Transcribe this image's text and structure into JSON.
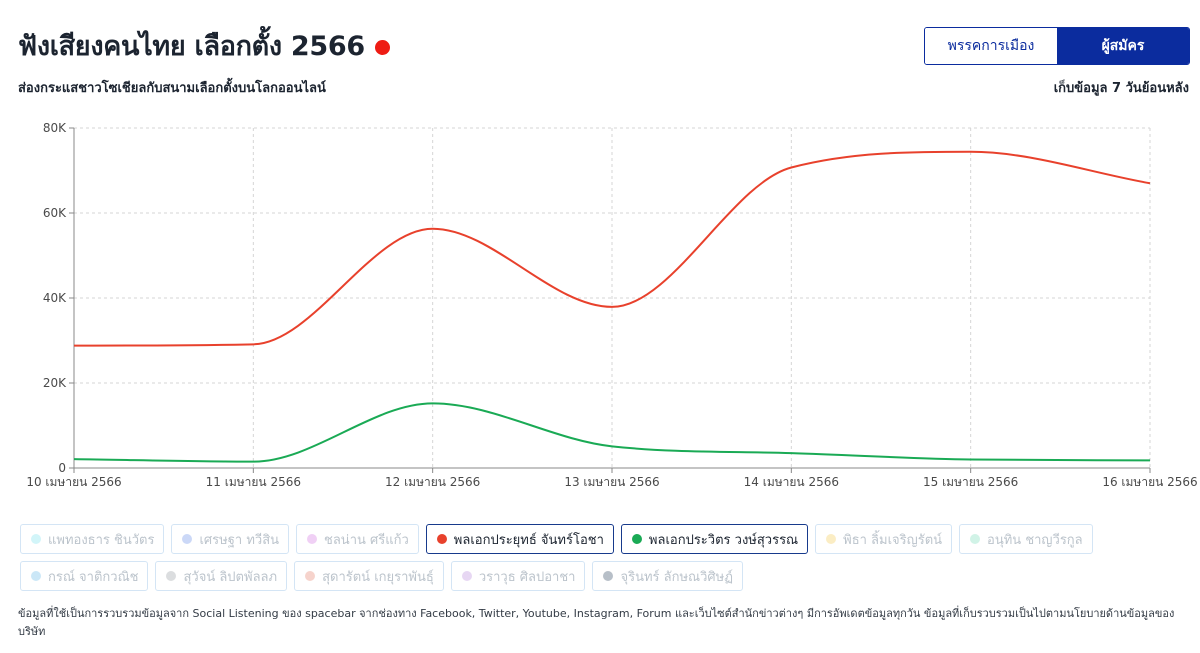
{
  "header": {
    "title": "ฟังเสียงคนไทย เลือกตั้ง 2566",
    "subtitle": "ส่องกระแสชาวโซเชียลกับสนามเลือกตั้งบนโลกออนไลน์",
    "period_note": "เก็บข้อมูล 7 วันย้อนหลัง",
    "live_color": "#ee1c14"
  },
  "toggle": {
    "party_label": "พรรคการเมือง",
    "candidate_label": "ผู้สมัคร",
    "selected": "candidate"
  },
  "chart_data": {
    "type": "line",
    "categories": [
      "10 เมษายน 2566",
      "11 เมษายน 2566",
      "12 เมษายน 2566",
      "13 เมษายน 2566",
      "14 เมษายน 2566",
      "15 เมษายน 2566",
      "16 เมษายน 2566"
    ],
    "ylim": [
      0,
      80000
    ],
    "yticks": [
      0,
      20000,
      40000,
      60000,
      80000
    ],
    "ytick_labels": [
      "0",
      "20K",
      "40K",
      "60K",
      "80K"
    ],
    "grid": true,
    "smooth": true,
    "series": [
      {
        "name": "พลเอกประยุทธ์ จันทร์โอชา",
        "color": "#e8412c",
        "values": [
          28800,
          29100,
          56300,
          37900,
          70700,
          74400,
          67000
        ]
      },
      {
        "name": "พลเอกประวิตร วงษ์สุวรรณ",
        "color": "#1aaa55",
        "values": [
          2100,
          1500,
          15200,
          5100,
          3500,
          2000,
          1800
        ]
      }
    ]
  },
  "legend": [
    {
      "label": "แพทองธาร ชินวัตร",
      "color": "#8ee6f0",
      "active": false
    },
    {
      "label": "เศรษฐา ทวีสิน",
      "color": "#7d9eea",
      "active": false
    },
    {
      "label": "ชลน่าน ศรีแก้ว",
      "color": "#d98ae6",
      "active": false
    },
    {
      "label": "พลเอกประยุทธ์ จันทร์โอชา",
      "color": "#e8412c",
      "active": true
    },
    {
      "label": "พลเอกประวิตร วงษ์สุวรรณ",
      "color": "#1aaa55",
      "active": true
    },
    {
      "label": "พิธา ลิ้มเจริญรัตน์",
      "color": "#f5d26b",
      "active": false
    },
    {
      "label": "อนุทิน ชาญวีรกูล",
      "color": "#8be0c4",
      "active": false
    },
    {
      "label": "กรณ์ จาติกวณิช",
      "color": "#7cc3ec",
      "active": false
    },
    {
      "label": "สุวัจน์ ลิปตพัลลภ",
      "color": "#a5aab0",
      "active": false
    },
    {
      "label": "สุดารัตน์ เกยุราพันธุ์",
      "color": "#e89280",
      "active": false
    },
    {
      "label": "วราวุธ ศิลปอาชา",
      "color": "#c49ae0",
      "active": false
    },
    {
      "label": "จุรินทร์ ลักษณวิศิษฏ์",
      "color": "#4a5f75",
      "active": false
    }
  ],
  "footnote": "ข้อมูลที่ใช้เป็นการรวบรวมข้อมูลจาก Social Listening ของ spacebar จากช่องทาง Facebook, Twitter, Youtube, Instagram, Forum และเว็บไซต์สำนักข่าวต่างๆ มีการอัพเดตข้อมูลทุกวัน ข้อมูลที่เก็บรวบรวมเป็นไปตามนโยบายด้านข้อมูลของบริษัท"
}
